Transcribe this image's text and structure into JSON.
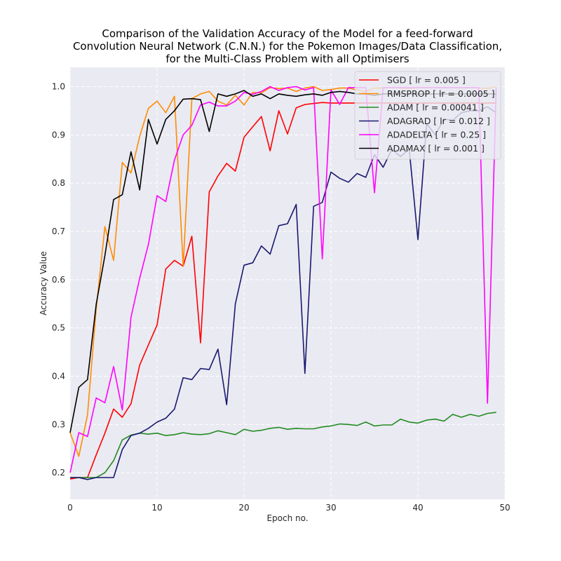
{
  "chart_data": {
    "type": "line",
    "title_lines": [
      "Comparison of the Validation Accuracy of the Model for a feed-forward",
      "Convolution Neural Network (C.N.N.) for the Pokemon Images/Data Classification,",
      "for the Multi-Class Problem with all Optimisers"
    ],
    "xlabel": "Epoch no.",
    "ylabel": "Accuracy Value",
    "xlim": [
      0,
      50
    ],
    "ylim": [
      0.145,
      1.04
    ],
    "xticks": [
      0,
      10,
      20,
      30,
      40,
      50
    ],
    "yticks": [
      0.2,
      0.3,
      0.4,
      0.5,
      0.6,
      0.7,
      0.8,
      0.9,
      1.0
    ],
    "ytick_labels": [
      "0.2",
      "0.3",
      "0.4",
      "0.5",
      "0.6",
      "0.7",
      "0.8",
      "0.9",
      "1.0"
    ],
    "grid": true,
    "legend_position": "top-right",
    "x": [
      0,
      1,
      2,
      3,
      4,
      5,
      6,
      7,
      8,
      9,
      10,
      11,
      12,
      13,
      14,
      15,
      16,
      17,
      18,
      19,
      20,
      21,
      22,
      23,
      24,
      25,
      26,
      27,
      28,
      29,
      30,
      31,
      32,
      33,
      34,
      35,
      36,
      37,
      38,
      39,
      40,
      41,
      42,
      43,
      44,
      45,
      46,
      47,
      48,
      49
    ],
    "series": [
      {
        "name": "SGD [ lr = 0.005 ]",
        "color": "#ff0000",
        "values": [
          0.187,
          0.19,
          0.19,
          0.237,
          0.282,
          0.332,
          0.315,
          0.343,
          0.423,
          0.465,
          0.506,
          0.622,
          0.64,
          0.628,
          0.69,
          0.469,
          0.782,
          0.815,
          0.841,
          0.825,
          0.895,
          0.917,
          0.938,
          0.867,
          0.95,
          0.902,
          0.956,
          0.963,
          0.965,
          0.967,
          0.966,
          0.966,
          0.966,
          0.966,
          0.966,
          0.966,
          0.966,
          0.966,
          0.966,
          0.966,
          0.966,
          0.966,
          0.966,
          0.966,
          0.966,
          0.966,
          0.966,
          0.966,
          0.966,
          0.966
        ]
      },
      {
        "name": "RMSPROP [ lr = 0.0005 ]",
        "color": "#ff8c00",
        "values": [
          0.283,
          0.234,
          0.32,
          0.54,
          0.71,
          0.64,
          0.843,
          0.821,
          0.897,
          0.955,
          0.97,
          0.946,
          0.98,
          0.628,
          0.975,
          0.985,
          0.99,
          0.97,
          0.962,
          0.982,
          0.962,
          0.988,
          0.987,
          0.998,
          0.996,
          0.997,
          0.99,
          0.997,
          1.0,
          0.992,
          0.994,
          0.997,
          0.997,
          0.993,
          0.99,
          0.997,
          0.997,
          0.998,
          0.997,
          0.996,
          0.998,
          0.998,
          0.998,
          0.998,
          0.998,
          0.997,
          0.998,
          0.997,
          0.996,
          1.0
        ]
      },
      {
        "name": "ADAM [ lr = 0.00041 ]",
        "color": "#228b22",
        "values": [
          0.19,
          0.19,
          0.19,
          0.19,
          0.2,
          0.225,
          0.268,
          0.278,
          0.282,
          0.28,
          0.282,
          0.277,
          0.279,
          0.283,
          0.28,
          0.279,
          0.281,
          0.287,
          0.283,
          0.279,
          0.29,
          0.286,
          0.288,
          0.292,
          0.294,
          0.29,
          0.292,
          0.291,
          0.291,
          0.295,
          0.297,
          0.301,
          0.3,
          0.298,
          0.305,
          0.297,
          0.299,
          0.299,
          0.311,
          0.305,
          0.303,
          0.309,
          0.311,
          0.307,
          0.321,
          0.315,
          0.321,
          0.317,
          0.323,
          0.325
        ]
      },
      {
        "name": "ADAGRAD [ lr = 0.012 ]",
        "color": "#191970",
        "values": [
          0.19,
          0.19,
          0.186,
          0.19,
          0.19,
          0.19,
          0.248,
          0.277,
          0.282,
          0.292,
          0.305,
          0.313,
          0.332,
          0.397,
          0.393,
          0.416,
          0.414,
          0.456,
          0.341,
          0.55,
          0.63,
          0.635,
          0.67,
          0.653,
          0.712,
          0.716,
          0.756,
          0.406,
          0.752,
          0.76,
          0.823,
          0.81,
          0.802,
          0.82,
          0.812,
          0.859,
          0.833,
          0.87,
          0.855,
          0.87,
          0.683,
          0.923,
          0.9,
          0.933,
          0.93,
          0.946,
          0.95,
          0.95,
          0.958,
          0.946
        ]
      },
      {
        "name": "ADADELTA [ lr = 0.25 ]",
        "color": "#ff00ff",
        "values": [
          0.2,
          0.283,
          0.275,
          0.355,
          0.345,
          0.42,
          0.33,
          0.522,
          0.603,
          0.673,
          0.774,
          0.762,
          0.848,
          0.9,
          0.92,
          0.962,
          0.968,
          0.96,
          0.96,
          0.97,
          0.988,
          0.984,
          0.99,
          1.0,
          0.992,
          0.998,
          1.0,
          0.993,
          0.998,
          0.643,
          0.993,
          0.963,
          0.998,
          0.998,
          0.998,
          0.78,
          0.998,
          0.998,
          0.998,
          0.998,
          0.998,
          0.998,
          0.998,
          0.998,
          0.998,
          0.998,
          0.998,
          0.998,
          0.344,
          0.998
        ]
      },
      {
        "name": "ADAMAX [ lr = 0.001 ]",
        "color": "#000000",
        "values": [
          0.283,
          0.377,
          0.393,
          0.549,
          0.65,
          0.766,
          0.776,
          0.865,
          0.786,
          0.932,
          0.881,
          0.932,
          0.95,
          0.974,
          0.975,
          0.973,
          0.907,
          0.985,
          0.98,
          0.985,
          0.992,
          0.98,
          0.985,
          0.975,
          0.985,
          0.982,
          0.98,
          0.983,
          0.985,
          0.982,
          0.988,
          0.99,
          0.988,
          0.985,
          0.985,
          0.982,
          0.985,
          0.985,
          0.985,
          0.985,
          0.985,
          0.985,
          0.985,
          0.985,
          0.985,
          0.985,
          0.985,
          0.985,
          0.985,
          0.985
        ]
      }
    ]
  }
}
